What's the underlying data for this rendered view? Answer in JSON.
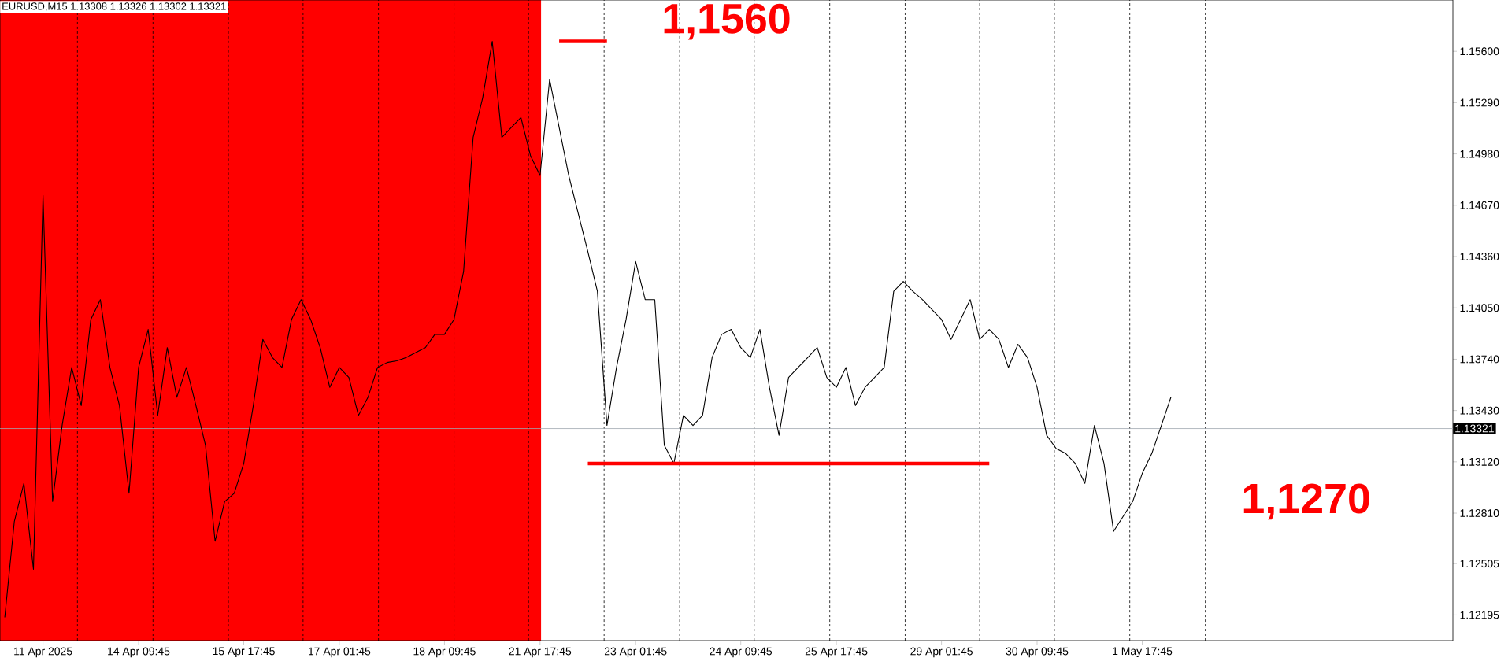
{
  "chart_data": {
    "type": "line",
    "title": "EURUSD,M15  1.13308 1.13326 1.13302 1.13321",
    "categories": [
      null,
      null,
      null,
      null,
      "11 Apr 2025",
      null,
      null,
      null,
      null,
      null,
      null,
      null,
      null,
      null,
      "14 Apr 09:45",
      null,
      null,
      null,
      null,
      null,
      null,
      null,
      null,
      null,
      null,
      "15 Apr 17:45",
      null,
      null,
      null,
      null,
      null,
      null,
      null,
      null,
      null,
      "17 Apr 01:45",
      null,
      null,
      null,
      null,
      null,
      null,
      null,
      null,
      null,
      null,
      "18 Apr 09:45",
      null,
      null,
      null,
      null,
      null,
      null,
      null,
      null,
      null,
      "21 Apr 17:45",
      null,
      null,
      null,
      null,
      null,
      null,
      null,
      null,
      null,
      "23 Apr 01:45",
      null,
      null,
      null,
      null,
      null,
      null,
      null,
      null,
      null,
      null,
      "24 Apr 09:45",
      null,
      null,
      null,
      null,
      null,
      null,
      null,
      null,
      null,
      "25 Apr 17:45",
      null,
      null,
      null,
      null,
      null,
      null,
      null,
      null,
      null,
      null,
      "29 Apr 01:45",
      null,
      null,
      null,
      null,
      null,
      null,
      null,
      null,
      null,
      "30 Apr 09:45",
      null,
      null,
      null,
      null,
      null,
      null,
      null,
      null,
      null,
      null,
      "1 May 17:45",
      null,
      null,
      null,
      null,
      null,
      null,
      null,
      null,
      null,
      null,
      null,
      null,
      null,
      null,
      null,
      null,
      null,
      null,
      null,
      null,
      null,
      null,
      null,
      null,
      null,
      null,
      null,
      null,
      null,
      null,
      null,
      null
    ],
    "ylim": [
      1.1204,
      1.1591
    ],
    "yticks": [
      {
        "value": 1.12195,
        "label": "1.12195"
      },
      {
        "value": 1.12505,
        "label": "1.12505"
      },
      {
        "value": 1.1281,
        "label": "1.12810"
      },
      {
        "value": 1.1312,
        "label": "1.13120"
      },
      {
        "value": 1.1343,
        "label": "1.13430"
      },
      {
        "value": 1.1374,
        "label": "1.13740"
      },
      {
        "value": 1.1405,
        "label": "1.14050"
      },
      {
        "value": 1.1436,
        "label": "1.14360"
      },
      {
        "value": 1.1467,
        "label": "1.14670"
      },
      {
        "value": 1.1498,
        "label": "1.14980"
      },
      {
        "value": 1.1529,
        "label": "1.15290"
      },
      {
        "value": 1.156,
        "label": "1.15600"
      }
    ],
    "marker": "none",
    "ref_lines": [
      {
        "axis": "y",
        "value": 1.13321,
        "label": "1.13321",
        "color": "#a0a8b0",
        "line_style": "solid"
      }
    ],
    "annotations": [
      "1,1560",
      "1,1270"
    ],
    "series": [
      {
        "color": "#000000",
        "values": [
          1.1218,
          1.1276,
          1.1299,
          1.1247,
          1.1473,
          1.1288,
          1.1334,
          1.1369,
          1.1346,
          1.1398,
          1.141,
          1.1369,
          1.1346,
          1.1293,
          1.1369,
          1.1392,
          1.134,
          1.1381,
          1.1351,
          1.1369,
          1.1346,
          1.1322,
          1.1264,
          1.1288,
          1.1293,
          1.1311,
          1.1346,
          1.1386,
          1.1375,
          1.1369,
          1.1398,
          1.141,
          1.1398,
          1.1381,
          1.1357,
          1.1369,
          1.1363,
          1.134,
          1.1351,
          1.1369,
          1.1372,
          1.1373,
          1.1375,
          1.1378,
          1.1381,
          1.1389,
          1.1389,
          1.1398,
          1.1427,
          1.1508,
          1.1532,
          1.1566,
          1.1508,
          1.1514,
          1.152,
          1.1497,
          1.1485,
          1.1543,
          1.1514,
          1.1485,
          1.1462,
          1.1439,
          1.1415,
          1.1334,
          1.1369,
          1.1398,
          1.1433,
          1.141,
          1.141,
          1.1322,
          1.1311,
          1.134,
          1.1334,
          1.134,
          1.1375,
          1.1389,
          1.1392,
          1.1381,
          1.1375,
          1.1392,
          1.1357,
          1.1328,
          1.1363,
          1.1369,
          1.1375,
          1.1381,
          1.1363,
          1.1357,
          1.1369,
          1.1346,
          1.1357,
          1.1363,
          1.1369,
          1.1415,
          1.1421,
          1.1415,
          1.141,
          1.1404,
          1.1398,
          1.1386,
          1.1398,
          1.141,
          1.1386,
          1.1392,
          1.1386,
          1.1369,
          1.1383,
          1.1375,
          1.1357,
          1.1328,
          1.132,
          1.1317,
          1.1311,
          1.1299,
          1.1334,
          1.1311,
          1.127,
          1.1279,
          1.1288,
          1.1305,
          1.1317,
          1.1334,
          1.1351,
          null,
          null,
          null,
          null,
          null,
          null,
          null,
          null,
          null,
          null,
          null,
          null,
          null,
          null,
          null,
          null,
          null,
          null,
          null,
          null,
          null,
          null,
          null,
          null,
          null,
          null,
          null,
          null,
          null
        ]
      },
      {
        "color": "#ff0000",
        "values": [
          null,
          null,
          null,
          null,
          null,
          null,
          null,
          null,
          null,
          null,
          null,
          null,
          null,
          null,
          null,
          null,
          null,
          null,
          null,
          null,
          null,
          null,
          null,
          null,
          null,
          null,
          null,
          null,
          null,
          null,
          null,
          null,
          null,
          null,
          null,
          null,
          null,
          null,
          null,
          null,
          null,
          null,
          null,
          null,
          null,
          null,
          null,
          null,
          null,
          null,
          null,
          null,
          null,
          null,
          null,
          null,
          null,
          null,
          1.1566,
          1.1566,
          1.1566,
          1.1566,
          1.1566,
          1.1566,
          null,
          null,
          null,
          null,
          null,
          null,
          null,
          null,
          null,
          null,
          null,
          null,
          null,
          null,
          null,
          null,
          null,
          null,
          null,
          null,
          null,
          null,
          null,
          null,
          null,
          null,
          null,
          null,
          null,
          null,
          null,
          null,
          null,
          null,
          null,
          null,
          null,
          null,
          null,
          null,
          null,
          null,
          null,
          null,
          null,
          null,
          null,
          null,
          null,
          null,
          null,
          null,
          null,
          null,
          null,
          null,
          null,
          null,
          null,
          null,
          null,
          null,
          null,
          null,
          null,
          null,
          null,
          null,
          null,
          null,
          null,
          null,
          null,
          null,
          null,
          null,
          null,
          null,
          null,
          null,
          null,
          null,
          null,
          null,
          null,
          null,
          null,
          null
        ]
      },
      {
        "color": "#ff0000",
        "values": [
          null,
          null,
          null,
          null,
          null,
          null,
          null,
          null,
          null,
          null,
          null,
          null,
          null,
          null,
          null,
          null,
          null,
          null,
          null,
          null,
          null,
          null,
          null,
          null,
          null,
          null,
          null,
          null,
          null,
          null,
          null,
          null,
          null,
          null,
          null,
          null,
          null,
          null,
          null,
          null,
          null,
          null,
          null,
          null,
          null,
          null,
          null,
          null,
          null,
          null,
          null,
          null,
          null,
          null,
          null,
          null,
          null,
          null,
          null,
          null,
          null,
          1.1311,
          1.1311,
          1.1311,
          1.1311,
          1.1311,
          1.1311,
          1.1311,
          1.1311,
          1.1311,
          1.1311,
          1.1311,
          1.1311,
          1.1311,
          1.1311,
          1.1311,
          1.1311,
          1.1311,
          1.1311,
          1.1311,
          1.1311,
          1.1311,
          1.1311,
          1.1311,
          1.1311,
          1.1311,
          1.1311,
          1.1311,
          1.1311,
          1.1311,
          1.1311,
          1.1311,
          1.1311,
          1.1311,
          1.1311,
          1.1311,
          1.1311,
          1.1311,
          1.1311,
          1.1311,
          1.1311,
          1.1311,
          1.1311,
          1.1311,
          null,
          null,
          null,
          null,
          null,
          null,
          null,
          null,
          null,
          null,
          null,
          null,
          null,
          null,
          null,
          null,
          null,
          null,
          null,
          null,
          null,
          null,
          null,
          null,
          null,
          null,
          null,
          null,
          null,
          null,
          null,
          null,
          null,
          null,
          null,
          null,
          null,
          null,
          null,
          null,
          null,
          null,
          null,
          null,
          null,
          null,
          null,
          null
        ]
      }
    ]
  }
}
